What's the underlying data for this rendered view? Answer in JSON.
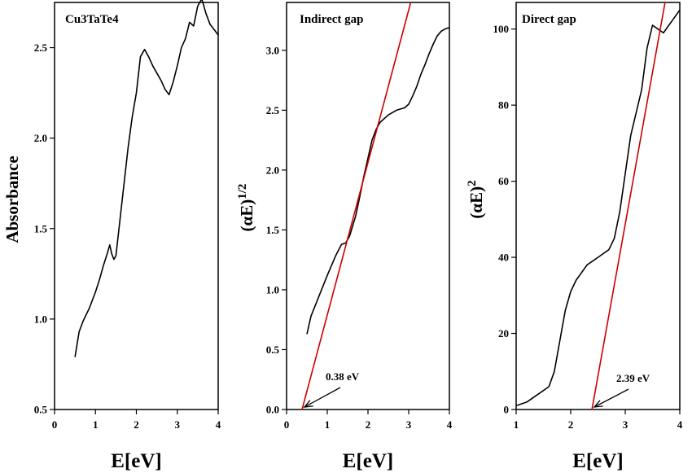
{
  "chart_data": [
    {
      "type": "line",
      "title": "Cu3TaTe4",
      "xlabel": "E[eV]",
      "ylabel": "Absorbance",
      "xlim": [
        0,
        4
      ],
      "ylim": [
        0.5,
        2.75
      ],
      "xticks": [
        "0",
        "1",
        "2",
        "3",
        "4"
      ],
      "yticks": [
        "0.5",
        "1.0",
        "1.5",
        "2.0",
        "2.5"
      ],
      "series": [
        {
          "color": "#000000",
          "x": [
            0.5,
            0.6,
            0.7,
            0.85,
            1.0,
            1.1,
            1.2,
            1.3,
            1.35,
            1.4,
            1.45,
            1.5,
            1.6,
            1.7,
            1.8,
            1.9,
            2.0,
            2.1,
            2.2,
            2.3,
            2.4,
            2.5,
            2.6,
            2.7,
            2.8,
            2.9,
            3.0,
            3.1,
            3.2,
            3.3,
            3.4,
            3.5,
            3.6,
            3.7,
            3.8,
            3.9,
            4.0
          ],
          "values": [
            0.79,
            0.93,
            0.99,
            1.06,
            1.15,
            1.22,
            1.3,
            1.37,
            1.41,
            1.36,
            1.33,
            1.35,
            1.55,
            1.75,
            1.95,
            2.12,
            2.25,
            2.45,
            2.49,
            2.45,
            2.4,
            2.36,
            2.32,
            2.27,
            2.24,
            2.31,
            2.4,
            2.5,
            2.55,
            2.64,
            2.62,
            2.73,
            2.77,
            2.69,
            2.63,
            2.6,
            2.57
          ]
        }
      ]
    },
    {
      "type": "line",
      "title": "Indirect gap",
      "xlabel": "E[eV]",
      "ylabel": "(αE)",
      "ylabel_sup": "1/2",
      "xlim": [
        0,
        4
      ],
      "ylim": [
        0,
        3.4
      ],
      "xticks": [
        "0",
        "1",
        "2",
        "3",
        "4"
      ],
      "yticks": [
        "0.0",
        "0.5",
        "1.0",
        "1.5",
        "2.0",
        "2.5",
        "3.0"
      ],
      "series": [
        {
          "color": "#000000",
          "x": [
            0.5,
            0.6,
            0.8,
            1.0,
            1.2,
            1.35,
            1.45,
            1.55,
            1.7,
            1.8,
            1.9,
            2.0,
            2.1,
            2.2,
            2.3,
            2.5,
            2.7,
            2.9,
            3.0,
            3.1,
            3.2,
            3.3,
            3.4,
            3.5,
            3.6,
            3.7,
            3.8,
            3.9,
            4.0
          ],
          "values": [
            0.63,
            0.78,
            0.95,
            1.12,
            1.28,
            1.38,
            1.39,
            1.45,
            1.62,
            1.78,
            1.95,
            2.1,
            2.25,
            2.34,
            2.4,
            2.46,
            2.5,
            2.52,
            2.55,
            2.62,
            2.7,
            2.8,
            2.88,
            2.97,
            3.05,
            3.12,
            3.16,
            3.18,
            3.19
          ]
        },
        {
          "color": "#cc0000",
          "x": [
            0.38,
            3.05
          ],
          "values": [
            0.0,
            3.4
          ]
        }
      ],
      "annotation": "0.38 eV"
    },
    {
      "type": "line",
      "title": "Direct gap",
      "xlabel": "E[eV]",
      "ylabel": "(αE)",
      "ylabel_sup": "2",
      "xlim": [
        1,
        4
      ],
      "ylim": [
        0,
        107
      ],
      "xticks": [
        "1",
        "2",
        "3",
        "4"
      ],
      "yticks": [
        "0",
        "20",
        "40",
        "60",
        "80",
        "100"
      ],
      "series": [
        {
          "color": "#000000",
          "x": [
            1.0,
            1.2,
            1.4,
            1.6,
            1.7,
            1.8,
            1.9,
            2.0,
            2.1,
            2.2,
            2.3,
            2.4,
            2.5,
            2.6,
            2.7,
            2.8,
            2.9,
            3.0,
            3.1,
            3.2,
            3.3,
            3.4,
            3.5,
            3.6,
            3.7,
            3.8,
            3.9,
            4.0
          ],
          "values": [
            1,
            2,
            4,
            6,
            10,
            18,
            26,
            31,
            34,
            36,
            38,
            39,
            40,
            41,
            42,
            45,
            52,
            62,
            72,
            78,
            84,
            95,
            101,
            100,
            99,
            101,
            103,
            105
          ]
        },
        {
          "color": "#cc0000",
          "x": [
            2.39,
            3.73
          ],
          "values": [
            0,
            107
          ]
        }
      ],
      "annotation": "2.39 eV"
    }
  ]
}
